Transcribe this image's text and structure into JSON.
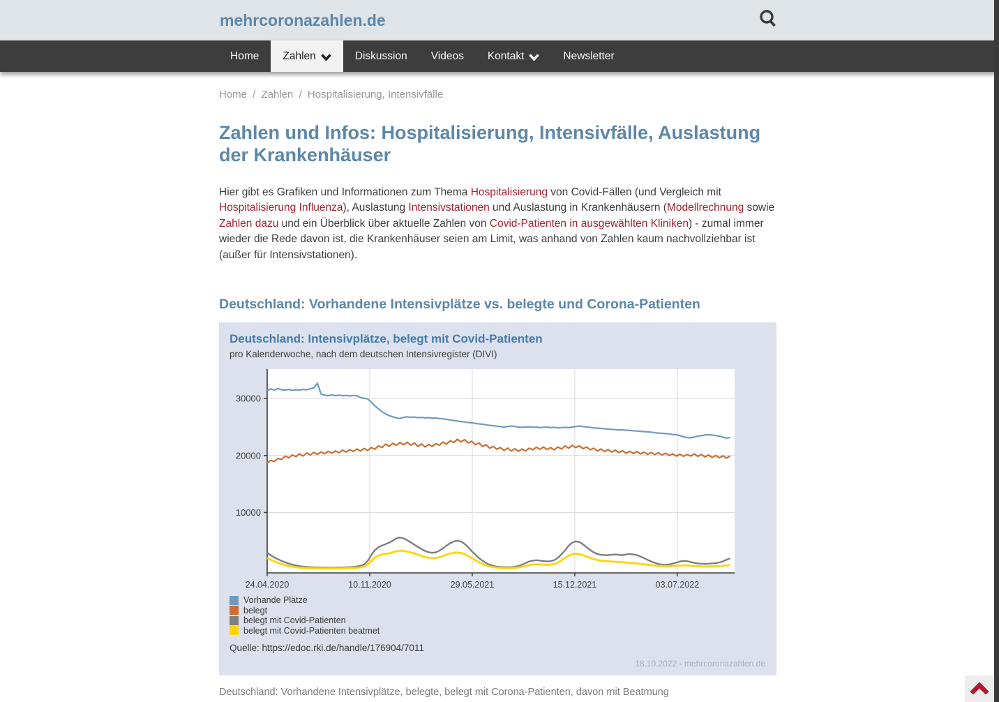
{
  "theme": {
    "accent": "#5d87a9",
    "chart_title": "#447bab",
    "link": "#a8212e",
    "nav_bg": "#3d3d3d",
    "panel_bg": "#dce1ed",
    "scrolltop_red": "#b11a31"
  },
  "header": {
    "brand": "mehrcoronazahlen.de"
  },
  "nav": {
    "items": [
      {
        "label": "Home",
        "active": false,
        "chevron": false
      },
      {
        "label": "Zahlen",
        "active": true,
        "chevron": true
      },
      {
        "label": "Diskussion",
        "active": false,
        "chevron": false
      },
      {
        "label": "Videos",
        "active": false,
        "chevron": false
      },
      {
        "label": "Kontakt",
        "active": false,
        "chevron": true
      },
      {
        "label": "Newsletter",
        "active": false,
        "chevron": false
      }
    ]
  },
  "breadcrumb": {
    "items": [
      "Home",
      "Zahlen",
      "Hospitalisierung, Intensivfälle"
    ],
    "separator": "/"
  },
  "page": {
    "title": "Zahlen und Infos: Hospitalisierung, Intensivfälle, Auslastung der Krankenhäuser"
  },
  "intro": {
    "segments": [
      {
        "t": "Hier gibt es Grafiken und Informationen zum Thema "
      },
      {
        "t": "Hospitalisierung",
        "link": true
      },
      {
        "t": " von Covid-Fällen (und Vergleich mit "
      },
      {
        "t": "Hospitalisierung Influenza",
        "link": true
      },
      {
        "t": "), Auslastung "
      },
      {
        "t": "Intensivstationen",
        "link": true
      },
      {
        "t": " und Auslastung in Krankenhäusern ("
      },
      {
        "t": "Modellrechnung",
        "link": true
      },
      {
        "t": " sowie "
      },
      {
        "t": "Zahlen dazu",
        "link": true
      },
      {
        "t": " und ein Überblick über aktuelle Zahlen von "
      },
      {
        "t": "Covid-Patienten in ausgewählten Kliniken",
        "link": true
      },
      {
        "t": ") - zumal immer wieder die Rede davon ist, die Krankenhäuser seien am Limit, was anhand von Zahlen kaum nachvollziehbar ist (außer für Intensivstationen)."
      }
    ]
  },
  "section": {
    "heading": "Deutschland: Vorhandene Intensivplätze vs. belegte und Corona-Patienten"
  },
  "caption": "Deutschland: Vorhandene Intensivplätze, belegte, belegt mit Corona-Patienten, davon mit Beatmung",
  "chart_data": {
    "type": "line",
    "title": "Deutschland: Intensivplätze, belegt mit Covid-Patienten",
    "subtitle": "pro Kalenderwoche, nach dem deutschen Intensivregister (DIVI)",
    "source": "Quelle: https://edoc.rki.de/handle/176904/7011",
    "footer": "18.10.2022 -  mehrcoronazahlen.de",
    "x_unit": "Kalenderwoche (weekly points, week 0 = 24.04.2020)",
    "x_tick_labels": [
      "24.04.2020",
      "10.11.2020",
      "29.05.2021",
      "15.12.2021",
      "03.07.2022"
    ],
    "x_tick_weeks": [
      0,
      28.571,
      57.143,
      85.714,
      114.286
    ],
    "y_ticks": [
      10000,
      20000,
      30000
    ],
    "ylim": [
      0,
      35200
    ],
    "grid": true,
    "legend_position": "bottom-left",
    "series": [
      {
        "name": "Vorhande Plätze",
        "color": "#6f9ac0",
        "width": 2.2,
        "values": [
          31400,
          31700,
          31500,
          31750,
          31550,
          31500,
          31600,
          31450,
          31550,
          31500,
          31600,
          31550,
          31700,
          31900,
          32700,
          30800,
          30600,
          30500,
          30650,
          30500,
          30600,
          30500,
          30550,
          30450,
          30550,
          30500,
          30200,
          30050,
          29950,
          29400,
          28700,
          28200,
          27700,
          27300,
          27000,
          26800,
          26600,
          26500,
          26700,
          26800,
          26700,
          26750,
          26650,
          26700,
          26600,
          26650,
          26550,
          26600,
          26500,
          26450,
          26350,
          26250,
          26150,
          26050,
          25950,
          25900,
          25800,
          25750,
          25650,
          25550,
          25500,
          25400,
          25300,
          25250,
          25150,
          25100,
          25000,
          25100,
          25200,
          25100,
          25000,
          24950,
          25000,
          25050,
          24950,
          25000,
          24900,
          24950,
          25000,
          24900,
          24950,
          24850,
          24900,
          24950,
          24900,
          25000,
          25100,
          25200,
          25100,
          25000,
          24950,
          24850,
          24800,
          24750,
          24700,
          24650,
          24600,
          24550,
          24500,
          24500,
          24450,
          24400,
          24350,
          24300,
          24250,
          24200,
          24150,
          24100,
          24000,
          23950,
          23900,
          23850,
          23800,
          23700,
          23650,
          23500,
          23300,
          23150,
          23100,
          23250,
          23400,
          23500,
          23600,
          23650,
          23600,
          23500,
          23400,
          23250,
          23050,
          23150
        ]
      },
      {
        "name": "belegt",
        "color": "#c96f35",
        "width": 2.2,
        "values": [
          18650,
          19150,
          18950,
          19500,
          19300,
          19900,
          19600,
          20100,
          19800,
          20300,
          19900,
          20450,
          20100,
          20550,
          20200,
          20650,
          20300,
          20750,
          20400,
          20800,
          20500,
          20950,
          20600,
          21050,
          20700,
          21150,
          20800,
          21250,
          20900,
          21400,
          21100,
          21700,
          21400,
          22000,
          21600,
          22150,
          21800,
          22300,
          21900,
          22350,
          21800,
          22200,
          21600,
          22050,
          21500,
          21950,
          21600,
          22100,
          21800,
          22350,
          22000,
          22600,
          22300,
          22850,
          22400,
          22800,
          22200,
          22500,
          21900,
          22200,
          21600,
          21900,
          21300,
          21600,
          21100,
          21400,
          20900,
          21300,
          20800,
          21200,
          20750,
          21150,
          20800,
          21300,
          21000,
          21450,
          21100,
          21500,
          21050,
          21400,
          21000,
          21500,
          21150,
          21700,
          21300,
          21800,
          21400,
          21700,
          21200,
          21500,
          21000,
          21300,
          20800,
          21150,
          20700,
          21050,
          20600,
          20950,
          20500,
          20850,
          20400,
          20750,
          20350,
          20700,
          20300,
          20600,
          20200,
          20550,
          20150,
          20500,
          20100,
          20400,
          20000,
          20300,
          19900,
          20250,
          19850,
          20200,
          19900,
          20300,
          19850,
          20200,
          19750,
          20100,
          19650,
          20000,
          19600,
          19950,
          19550,
          19900
        ]
      },
      {
        "name": "belegt mit Covid-Patienten",
        "color": "#7f7f7f",
        "width": 2.4,
        "values": [
          2900,
          2500,
          2100,
          1800,
          1500,
          1250,
          1020,
          840,
          700,
          590,
          500,
          440,
          390,
          360,
          335,
          320,
          310,
          300,
          300,
          305,
          315,
          335,
          360,
          395,
          440,
          510,
          650,
          900,
          1500,
          2500,
          3400,
          3900,
          4200,
          4450,
          4700,
          5050,
          5450,
          5600,
          5450,
          5150,
          4750,
          4350,
          3950,
          3550,
          3250,
          3020,
          2920,
          3000,
          3300,
          3700,
          4200,
          4600,
          4900,
          5050,
          4900,
          4500,
          3900,
          3200,
          2600,
          2000,
          1520,
          1120,
          820,
          620,
          500,
          430,
          390,
          370,
          390,
          460,
          610,
          820,
          1100,
          1400,
          1550,
          1620,
          1560,
          1460,
          1400,
          1460,
          1620,
          2050,
          2650,
          3350,
          4150,
          4700,
          4920,
          4800,
          4400,
          3900,
          3400,
          3000,
          2700,
          2560,
          2500,
          2520,
          2560,
          2620,
          2560,
          2500,
          2620,
          2720,
          2650,
          2500,
          2280,
          1980,
          1680,
          1400,
          1160,
          960,
          860,
          810,
          860,
          1010,
          1210,
          1400,
          1500,
          1440,
          1300,
          1150,
          1050,
          1000,
          980,
          1000,
          1060,
          1120,
          1220,
          1420,
          1700,
          1950
        ]
      },
      {
        "name": "belegt mit Covid-Patienten beatmet",
        "color": "#ffd500",
        "width": 2.8,
        "values": [
          2000,
          1700,
          1420,
          1160,
          950,
          760,
          610,
          490,
          400,
          330,
          280,
          240,
          210,
          190,
          180,
          170,
          165,
          160,
          160,
          165,
          172,
          182,
          196,
          215,
          242,
          285,
          365,
          510,
          900,
          1500,
          2100,
          2420,
          2600,
          2720,
          2820,
          3000,
          3200,
          3300,
          3250,
          3130,
          2980,
          2790,
          2590,
          2390,
          2210,
          2060,
          1960,
          2010,
          2150,
          2350,
          2600,
          2800,
          2910,
          2960,
          2900,
          2700,
          2350,
          2000,
          1600,
          1250,
          950,
          710,
          530,
          410,
          325,
          270,
          242,
          230,
          242,
          280,
          350,
          455,
          600,
          750,
          850,
          905,
          880,
          830,
          800,
          830,
          950,
          1200,
          1600,
          2010,
          2400,
          2650,
          2760,
          2700,
          2500,
          2250,
          2010,
          1810,
          1650,
          1550,
          1495,
          1450,
          1400,
          1350,
          1300,
          1250,
          1200,
          1150,
          1100,
          1045,
          980,
          900,
          820,
          750,
          685,
          630,
          600,
          580,
          578,
          600,
          630,
          680,
          718,
          700,
          650,
          600,
          560,
          532,
          520,
          518,
          530,
          550,
          578,
          620,
          680,
          750
        ]
      }
    ]
  }
}
